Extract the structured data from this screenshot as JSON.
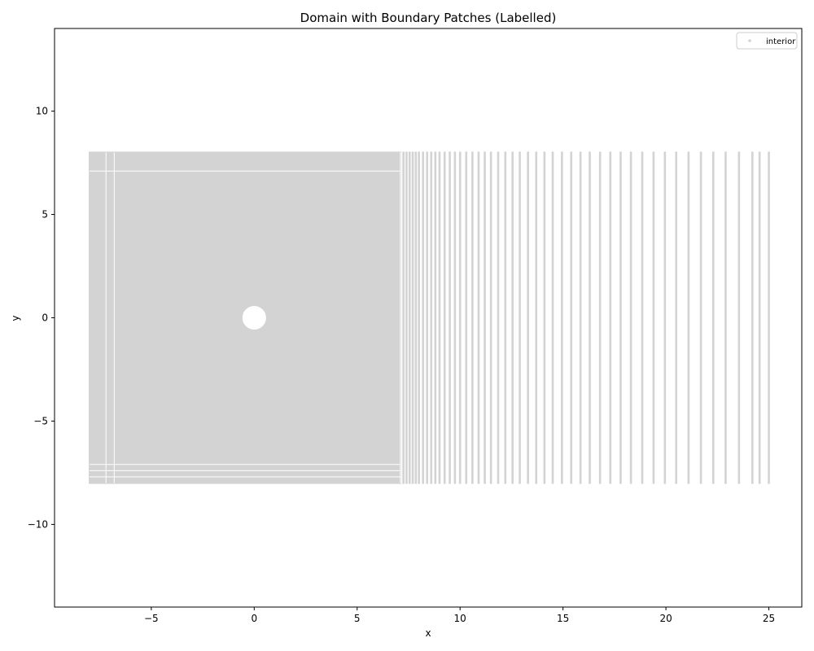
{
  "chart_data": {
    "type": "scatter",
    "title": "Domain with Boundary Patches (Labelled)",
    "xlabel": "x",
    "ylabel": "y",
    "xlim": [
      -9.7,
      26.6
    ],
    "ylim": [
      -14,
      14
    ],
    "xticks": [
      -5,
      0,
      5,
      10,
      15,
      20,
      25
    ],
    "yticks": [
      -10,
      -5,
      0,
      5,
      10
    ],
    "xtick_labels": [
      "−5",
      "0",
      "5",
      "10",
      "15",
      "20",
      "25"
    ],
    "ytick_labels": [
      "−10",
      "−5",
      "0",
      "5",
      "10"
    ],
    "legend": {
      "placement": "top-right",
      "entries": [
        "interior"
      ]
    },
    "grid": false,
    "series": [
      {
        "name": "interior",
        "color": "#d3d3d3",
        "marker": "point",
        "domain": {
          "x_range": [
            -8,
            25
          ],
          "y_range": [
            -8,
            8
          ],
          "hole": {
            "center": [
              0,
              0
            ],
            "radius": 0.5
          },
          "x_columns_fine": {
            "from": -8,
            "to": 7.1,
            "step": 0.1
          },
          "x_columns_coarse": [
            7.25,
            7.4,
            7.55,
            7.7,
            7.85,
            8.0,
            8.2,
            8.4,
            8.6,
            8.8,
            9.0,
            9.25,
            9.5,
            9.75,
            10.0,
            10.3,
            10.6,
            10.9,
            11.2,
            11.5,
            11.85,
            12.2,
            12.55,
            12.9,
            13.3,
            13.7,
            14.1,
            14.5,
            14.95,
            15.4,
            15.85,
            16.3,
            16.8,
            17.3,
            17.8,
            18.3,
            18.85,
            19.4,
            19.95,
            20.5,
            21.1,
            21.7,
            22.3,
            22.9,
            23.55,
            24.2,
            24.55,
            25.0
          ],
          "y_spacing": 0.12
        }
      }
    ]
  }
}
